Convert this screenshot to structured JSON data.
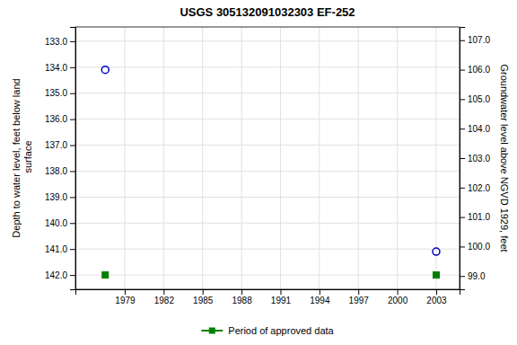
{
  "chart_data": {
    "type": "scatter",
    "title": "USGS 305132091032303 EF-252",
    "x": [
      1977.5,
      2003.0
    ],
    "series": [
      {
        "color": "#0000cc",
        "marker": "circle",
        "values": [
          134.1,
          141.1
        ]
      },
      {
        "name": "Period of approved data",
        "color": "#008000",
        "marker": "square",
        "values": [
          142.0,
          142.0
        ]
      }
    ],
    "xlim": [
      1975.2,
      2004.8
    ],
    "xticks": [
      1979,
      1982,
      1985,
      1988,
      1991,
      1994,
      1997,
      2000,
      2003
    ],
    "ylim": [
      142.55,
      132.45
    ],
    "yticks": [
      {
        "value": 133.0,
        "label": "133.0"
      },
      {
        "value": 134.0,
        "label": "134.0"
      },
      {
        "value": 135.0,
        "label": "135.0"
      },
      {
        "value": 136.0,
        "label": "136.0"
      },
      {
        "value": 137.0,
        "label": "137.0"
      },
      {
        "value": 138.0,
        "label": "138.0"
      },
      {
        "value": 139.0,
        "label": "139.0"
      },
      {
        "value": 140.0,
        "label": "140.0"
      },
      {
        "value": 141.0,
        "label": "141.0"
      },
      {
        "value": 142.0,
        "label": "142.0"
      }
    ],
    "y2lim": [
      98.55,
      107.45
    ],
    "y2ticks": [
      {
        "value": 99.0,
        "label": "99.0"
      },
      {
        "value": 100.0,
        "label": "100.0"
      },
      {
        "value": 101.0,
        "label": "101.0"
      },
      {
        "value": 102.0,
        "label": "102.0"
      },
      {
        "value": 103.0,
        "label": "103.0"
      },
      {
        "value": 104.0,
        "label": "104.0"
      },
      {
        "value": 105.0,
        "label": "105.0"
      },
      {
        "value": 106.0,
        "label": "106.0"
      },
      {
        "value": 107.0,
        "label": "107.0"
      }
    ],
    "ylabel": "Depth to water level, feet below land\n surface",
    "y2label": "Groundwater level above NGVD 1929, feet",
    "grid": true,
    "legend": "bottom"
  }
}
